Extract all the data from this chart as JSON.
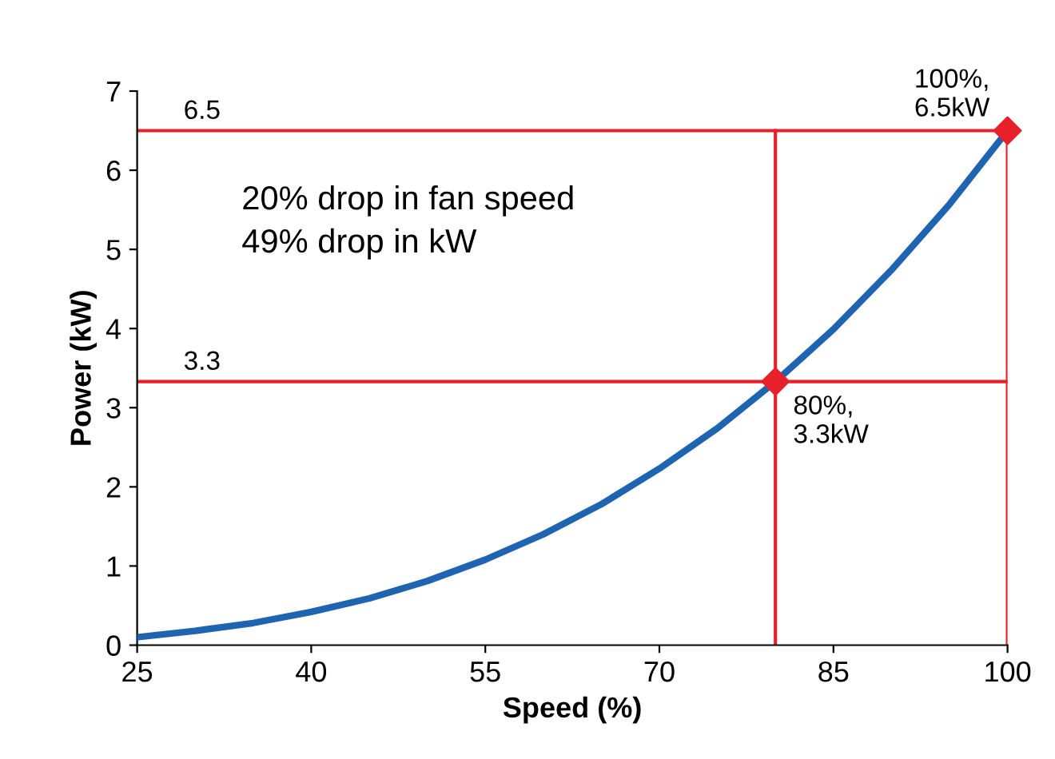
{
  "chart_data": {
    "type": "line",
    "xlabel": "Speed (%)",
    "ylabel": "Power (kW)",
    "xlim": [
      25,
      100
    ],
    "ylim": [
      0,
      7
    ],
    "xticks": [
      25,
      40,
      55,
      70,
      85,
      100
    ],
    "yticks": [
      0,
      1,
      2,
      3,
      4,
      5,
      6,
      7
    ],
    "grid": false,
    "series": [
      {
        "color": "#1f64b0",
        "marker": "none",
        "x": [
          25,
          30,
          35,
          40,
          45,
          50,
          55,
          60,
          65,
          70,
          75,
          80,
          85,
          90,
          95,
          100
        ],
        "values": [
          0.1,
          0.18,
          0.28,
          0.42,
          0.59,
          0.81,
          1.08,
          1.4,
          1.78,
          2.23,
          2.74,
          3.33,
          3.99,
          4.74,
          5.57,
          6.5
        ]
      },
      {
        "type": "scatter",
        "color": "#e8202a",
        "marker": "diamond",
        "x": [
          80,
          100
        ],
        "values": [
          3.33,
          6.5
        ]
      }
    ],
    "ref_lines": [
      {
        "axis": "y",
        "value": 6.5,
        "label": "6.5",
        "color": "#e8202a"
      },
      {
        "axis": "y",
        "value": 3.33,
        "label": "3.3",
        "color": "#e8202a"
      },
      {
        "axis": "x",
        "value": 80,
        "label": null,
        "color": "#e8202a"
      },
      {
        "axis": "x",
        "value": 100,
        "label": null,
        "color": "#e8202a"
      }
    ],
    "annotations": [
      "20% drop in fan speed\n49% drop in kW",
      {
        "text": "100%,\n6.5kW",
        "x": 100,
        "y": 6.5
      },
      {
        "text": "80%,\n3.3kW",
        "x": 80,
        "y": 3.33
      }
    ]
  }
}
